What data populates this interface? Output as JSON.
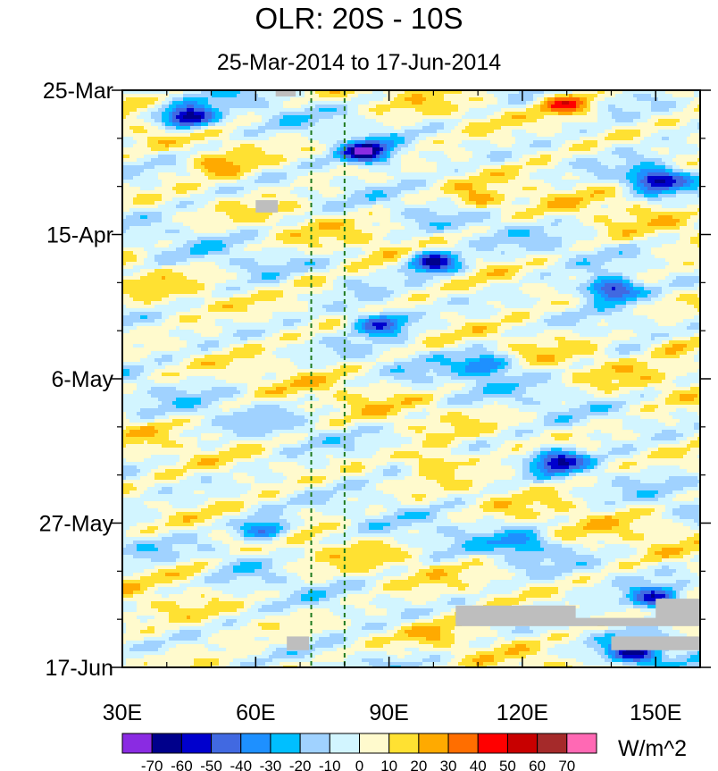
{
  "chart_data": {
    "type": "heatmap",
    "title": "OLR: 20S - 10S",
    "subtitle": "25-Mar-2014 to 17-Jun-2014",
    "x_ticks": [
      {
        "value": 30,
        "label": "30E"
      },
      {
        "value": 60,
        "label": "60E"
      },
      {
        "value": 90,
        "label": "90E"
      },
      {
        "value": 120,
        "label": "120E"
      },
      {
        "value": 150,
        "label": "150E"
      }
    ],
    "x_range": [
      30,
      160
    ],
    "y_ticks": [
      {
        "day": 0,
        "label": "25-Mar"
      },
      {
        "day": 21,
        "label": "15-Apr"
      },
      {
        "day": 42,
        "label": "6-May"
      },
      {
        "day": 63,
        "label": "27-May"
      },
      {
        "day": 84,
        "label": "17-Jun"
      }
    ],
    "y_range_days": [
      0,
      84
    ],
    "reference_lines_lon": [
      72.5,
      80
    ],
    "reference_line_color": "#1f7a1f",
    "colorbar": {
      "unit": "W/m^2",
      "levels": [
        -70,
        -60,
        -50,
        -40,
        -30,
        -20,
        -10,
        0,
        10,
        20,
        30,
        40,
        50,
        60,
        70
      ],
      "colors": [
        "#8a2be2",
        "#00008b",
        "#0000cd",
        "#4169e1",
        "#1e90ff",
        "#00bfff",
        "#a0d2ff",
        "#d2f5ff",
        "#fffacd",
        "#ffe132",
        "#ffaa00",
        "#ff6e00",
        "#ff0000",
        "#c80000",
        "#a52a2a",
        "#ff69b4"
      ]
    },
    "features": [
      {
        "lon": 45,
        "day": 4,
        "value": -70
      },
      {
        "lon": 85,
        "day": 9,
        "value": -70
      },
      {
        "lon": 150,
        "day": 13,
        "value": -60
      },
      {
        "lon": 100,
        "day": 25,
        "value": -70
      },
      {
        "lon": 140,
        "day": 29,
        "value": -60
      },
      {
        "lon": 130,
        "day": 2,
        "value": 45
      },
      {
        "lon": 52,
        "day": 11,
        "value": 25
      },
      {
        "lon": 88,
        "day": 34,
        "value": -50
      },
      {
        "lon": 155,
        "day": 37,
        "value": 30
      },
      {
        "lon": 112,
        "day": 40,
        "value": -40
      },
      {
        "lon": 128,
        "day": 54,
        "value": -60
      },
      {
        "lon": 62,
        "day": 64,
        "value": -50
      },
      {
        "lon": 150,
        "day": 74,
        "value": -60
      },
      {
        "lon": 145,
        "day": 82,
        "value": -60
      },
      {
        "lon": 100,
        "day": 54,
        "value": 25
      },
      {
        "lon": 45,
        "day": 70,
        "value": 20
      },
      {
        "lon": 110,
        "day": 16,
        "value": 25
      },
      {
        "lon": 72,
        "day": 28,
        "value": 15
      },
      {
        "lon": 120,
        "day": 66,
        "value": -30
      },
      {
        "lon": 100,
        "day": 79,
        "value": 20
      }
    ],
    "missing_patches": [
      {
        "lon": [
          64.5,
          69
        ],
        "day": [
          0,
          0.9
        ]
      },
      {
        "lon": [
          60,
          65
        ],
        "day": [
          16,
          17.8
        ]
      },
      {
        "lon": [
          105,
          132
        ],
        "day": [
          75,
          77.5
        ]
      },
      {
        "lon": [
          105,
          160
        ],
        "day": [
          76.8,
          78
        ]
      },
      {
        "lon": [
          150,
          160
        ],
        "day": [
          74,
          77.5
        ]
      },
      {
        "lon": [
          140,
          160
        ],
        "day": [
          79.5,
          81.5
        ]
      },
      {
        "lon": [
          67,
          72
        ],
        "day": [
          79.5,
          81.5
        ]
      }
    ]
  }
}
